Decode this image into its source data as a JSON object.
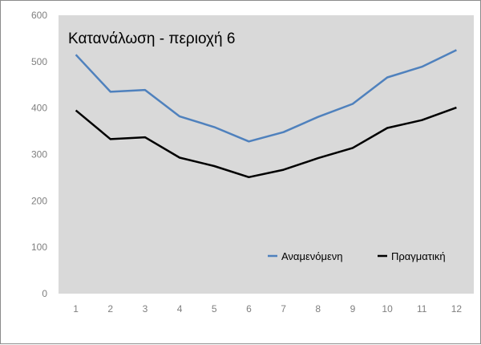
{
  "chart_data": {
    "type": "line",
    "title": "Κατανάλωση - περιοχή 6",
    "xlabel": "",
    "ylabel": "",
    "categories": [
      "1",
      "2",
      "3",
      "4",
      "5",
      "6",
      "7",
      "8",
      "9",
      "10",
      "11",
      "12"
    ],
    "ylim": [
      0,
      600
    ],
    "yticks": [
      0,
      100,
      200,
      300,
      400,
      500,
      600
    ],
    "grid": false,
    "plot_background": "#d9d9d9",
    "legend_position": "bottom-right-inside",
    "series": [
      {
        "name": "Αναμενόμενη",
        "color": "#4f81bd",
        "values": [
          515,
          435,
          439,
          382,
          359,
          328,
          348,
          381,
          409,
          466,
          489,
          525
        ]
      },
      {
        "name": "Πραγματική",
        "color": "#000000",
        "values": [
          395,
          333,
          337,
          293,
          275,
          251,
          267,
          292,
          314,
          357,
          374,
          401
        ]
      }
    ]
  }
}
